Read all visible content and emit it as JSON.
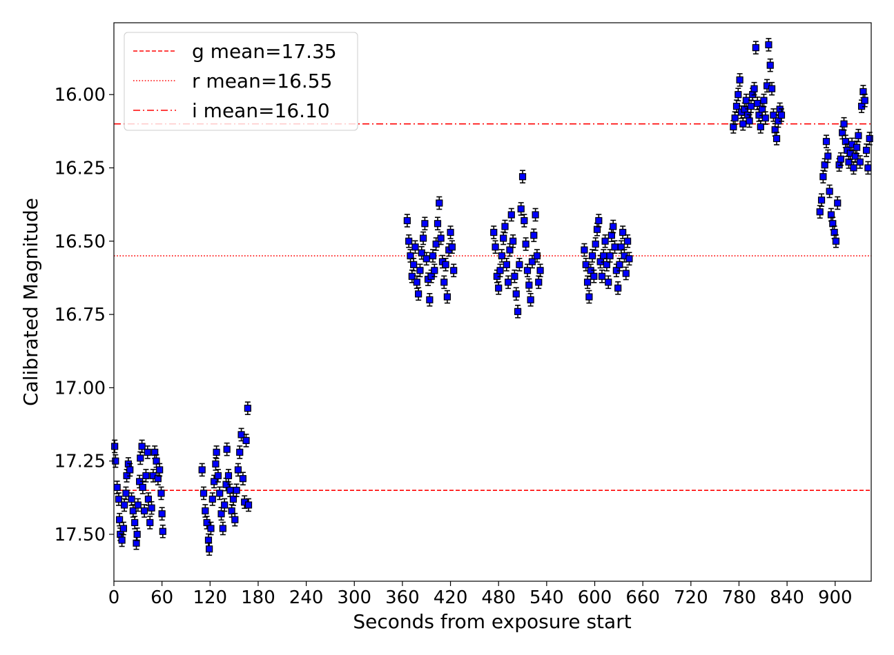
{
  "chart_data": {
    "type": "scatter",
    "xlabel": "Seconds from exposure start",
    "ylabel": "Calibrated Magnitude",
    "xlim": [
      0,
      945
    ],
    "ylim": [
      17.66,
      15.755
    ],
    "y_inverted": true,
    "grid": false,
    "legend_position": "top-left",
    "x_ticks": [
      "0",
      "60",
      "120",
      "180",
      "240",
      "300",
      "360",
      "420",
      "480",
      "540",
      "600",
      "660",
      "720",
      "780",
      "840",
      "900"
    ],
    "y_ticks": [
      "16.00",
      "16.25",
      "16.50",
      "16.75",
      "17.00",
      "17.25",
      "17.50"
    ],
    "reference_lines": [
      {
        "label": "g mean=17.35",
        "value": 17.35,
        "style": "dashed",
        "color": "#ff0000"
      },
      {
        "label": "r mean=16.55",
        "value": 16.55,
        "style": "dotted",
        "color": "#ff0000"
      },
      {
        "label": "i mean=16.10",
        "value": 16.1,
        "style": "dashdot",
        "color": "#ff0000"
      }
    ],
    "marker_color": "#0000ff",
    "marker_edge_color": "#000000",
    "errorbar_color": "#000000",
    "series": [
      {
        "band": "g",
        "points": [
          [
            1,
            17.2
          ],
          [
            2,
            17.25
          ],
          [
            4,
            17.34
          ],
          [
            6,
            17.38
          ],
          [
            7,
            17.45
          ],
          [
            8,
            17.5
          ],
          [
            10,
            17.52
          ],
          [
            12,
            17.48
          ],
          [
            13,
            17.4
          ],
          [
            15,
            17.36
          ],
          [
            16,
            17.3
          ],
          [
            18,
            17.26
          ],
          [
            20,
            17.28
          ],
          [
            22,
            17.38
          ],
          [
            24,
            17.42
          ],
          [
            26,
            17.46
          ],
          [
            28,
            17.53
          ],
          [
            29,
            17.5
          ],
          [
            30,
            17.4
          ],
          [
            32,
            17.32
          ],
          [
            33,
            17.24
          ],
          [
            35,
            17.2
          ],
          [
            36,
            17.34
          ],
          [
            38,
            17.42
          ],
          [
            40,
            17.3
          ],
          [
            42,
            17.22
          ],
          [
            43,
            17.38
          ],
          [
            45,
            17.46
          ],
          [
            47,
            17.41
          ],
          [
            49,
            17.3
          ],
          [
            51,
            17.22
          ],
          [
            53,
            17.25
          ],
          [
            55,
            17.31
          ],
          [
            57,
            17.28
          ],
          [
            59,
            17.36
          ],
          [
            60,
            17.43
          ],
          [
            61,
            17.49
          ],
          [
            110,
            17.28
          ],
          [
            112,
            17.36
          ],
          [
            114,
            17.42
          ],
          [
            116,
            17.46
          ],
          [
            118,
            17.52
          ],
          [
            119,
            17.55
          ],
          [
            121,
            17.48
          ],
          [
            123,
            17.38
          ],
          [
            125,
            17.32
          ],
          [
            127,
            17.26
          ],
          [
            128,
            17.22
          ],
          [
            130,
            17.3
          ],
          [
            132,
            17.36
          ],
          [
            134,
            17.43
          ],
          [
            136,
            17.48
          ],
          [
            138,
            17.4
          ],
          [
            140,
            17.33
          ],
          [
            141,
            17.21
          ],
          [
            143,
            17.3
          ],
          [
            145,
            17.35
          ],
          [
            147,
            17.42
          ],
          [
            149,
            17.38
          ],
          [
            151,
            17.45
          ],
          [
            153,
            17.35
          ],
          [
            155,
            17.28
          ],
          [
            157,
            17.22
          ],
          [
            159,
            17.16
          ],
          [
            161,
            17.31
          ],
          [
            163,
            17.39
          ],
          [
            165,
            17.18
          ],
          [
            167,
            17.07
          ],
          [
            168,
            17.4
          ]
        ]
      },
      {
        "band": "r",
        "points": [
          [
            366,
            16.43
          ],
          [
            368,
            16.5
          ],
          [
            370,
            16.55
          ],
          [
            372,
            16.62
          ],
          [
            374,
            16.58
          ],
          [
            376,
            16.52
          ],
          [
            378,
            16.64
          ],
          [
            380,
            16.68
          ],
          [
            382,
            16.6
          ],
          [
            384,
            16.54
          ],
          [
            386,
            16.49
          ],
          [
            388,
            16.44
          ],
          [
            390,
            16.56
          ],
          [
            392,
            16.63
          ],
          [
            394,
            16.7
          ],
          [
            396,
            16.62
          ],
          [
            398,
            16.55
          ],
          [
            400,
            16.6
          ],
          [
            402,
            16.51
          ],
          [
            404,
            16.44
          ],
          [
            406,
            16.37
          ],
          [
            408,
            16.49
          ],
          [
            410,
            16.57
          ],
          [
            412,
            16.64
          ],
          [
            414,
            16.58
          ],
          [
            416,
            16.69
          ],
          [
            418,
            16.53
          ],
          [
            420,
            16.47
          ],
          [
            422,
            16.52
          ],
          [
            424,
            16.6
          ],
          [
            474,
            16.47
          ],
          [
            476,
            16.52
          ],
          [
            478,
            16.62
          ],
          [
            480,
            16.66
          ],
          [
            482,
            16.6
          ],
          [
            484,
            16.55
          ],
          [
            486,
            16.49
          ],
          [
            488,
            16.45
          ],
          [
            490,
            16.58
          ],
          [
            492,
            16.64
          ],
          [
            494,
            16.53
          ],
          [
            496,
            16.41
          ],
          [
            498,
            16.5
          ],
          [
            500,
            16.62
          ],
          [
            502,
            16.68
          ],
          [
            504,
            16.74
          ],
          [
            506,
            16.58
          ],
          [
            508,
            16.39
          ],
          [
            510,
            16.28
          ],
          [
            512,
            16.43
          ],
          [
            514,
            16.51
          ],
          [
            516,
            16.6
          ],
          [
            518,
            16.65
          ],
          [
            520,
            16.7
          ],
          [
            522,
            16.57
          ],
          [
            524,
            16.48
          ],
          [
            526,
            16.41
          ],
          [
            528,
            16.55
          ],
          [
            530,
            16.64
          ],
          [
            532,
            16.6
          ],
          [
            587,
            16.53
          ],
          [
            589,
            16.58
          ],
          [
            591,
            16.64
          ],
          [
            593,
            16.69
          ],
          [
            595,
            16.6
          ],
          [
            597,
            16.55
          ],
          [
            599,
            16.62
          ],
          [
            601,
            16.51
          ],
          [
            603,
            16.46
          ],
          [
            605,
            16.43
          ],
          [
            607,
            16.57
          ],
          [
            609,
            16.62
          ],
          [
            611,
            16.55
          ],
          [
            613,
            16.5
          ],
          [
            615,
            16.58
          ],
          [
            617,
            16.64
          ],
          [
            619,
            16.55
          ],
          [
            621,
            16.48
          ],
          [
            623,
            16.45
          ],
          [
            625,
            16.52
          ],
          [
            627,
            16.6
          ],
          [
            629,
            16.66
          ],
          [
            631,
            16.58
          ],
          [
            633,
            16.52
          ],
          [
            635,
            16.47
          ],
          [
            637,
            16.55
          ],
          [
            639,
            16.61
          ],
          [
            641,
            16.5
          ],
          [
            643,
            16.56
          ]
        ]
      },
      {
        "band": "i",
        "points": [
          [
            773,
            16.11
          ],
          [
            775,
            16.08
          ],
          [
            777,
            16.04
          ],
          [
            779,
            16.0
          ],
          [
            781,
            15.95
          ],
          [
            783,
            16.06
          ],
          [
            785,
            16.1
          ],
          [
            787,
            16.05
          ],
          [
            789,
            16.02
          ],
          [
            791,
            16.07
          ],
          [
            793,
            16.09
          ],
          [
            795,
            16.04
          ],
          [
            797,
            16.0
          ],
          [
            799,
            15.98
          ],
          [
            801,
            15.84
          ],
          [
            803,
            16.03
          ],
          [
            805,
            16.07
          ],
          [
            807,
            16.11
          ],
          [
            809,
            16.05
          ],
          [
            811,
            16.02
          ],
          [
            813,
            16.08
          ],
          [
            815,
            15.97
          ],
          [
            817,
            15.83
          ],
          [
            819,
            15.9
          ],
          [
            821,
            15.98
          ],
          [
            823,
            16.07
          ],
          [
            825,
            16.12
          ],
          [
            827,
            16.15
          ],
          [
            829,
            16.09
          ],
          [
            831,
            16.05
          ],
          [
            833,
            16.07
          ],
          [
            881,
            16.4
          ],
          [
            883,
            16.36
          ],
          [
            885,
            16.28
          ],
          [
            887,
            16.24
          ],
          [
            889,
            16.16
          ],
          [
            891,
            16.21
          ],
          [
            893,
            16.33
          ],
          [
            895,
            16.41
          ],
          [
            897,
            16.44
          ],
          [
            899,
            16.47
          ],
          [
            901,
            16.5
          ],
          [
            903,
            16.37
          ],
          [
            905,
            16.24
          ],
          [
            907,
            16.22
          ],
          [
            909,
            16.13
          ],
          [
            911,
            16.1
          ],
          [
            913,
            16.16
          ],
          [
            915,
            16.19
          ],
          [
            917,
            16.23
          ],
          [
            919,
            16.2
          ],
          [
            921,
            16.17
          ],
          [
            923,
            16.25
          ],
          [
            925,
            16.21
          ],
          [
            927,
            16.18
          ],
          [
            929,
            16.14
          ],
          [
            931,
            16.23
          ],
          [
            933,
            16.04
          ],
          [
            935,
            15.99
          ],
          [
            937,
            16.02
          ],
          [
            939,
            16.19
          ],
          [
            941,
            16.25
          ],
          [
            943,
            16.15
          ]
        ]
      }
    ]
  }
}
